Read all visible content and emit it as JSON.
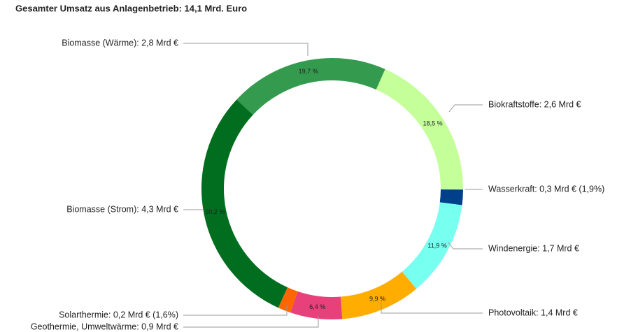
{
  "chart_data": {
    "type": "pie",
    "subtitle": "Gesamter Umsatz aus Anlagenbetrieb: 14,1 Mrd. Euro",
    "categories": [
      "Biomasse (Wärme): 2,8 Mrd €",
      "Biokraftstoffe: 2,6 Mrd €",
      "Wasserkraft: 0,3 Mrd € (1,9%)",
      "Windenergie: 1,7 Mrd €",
      "Photovoltaik: 1,4 Mrd €",
      "Geothermie, Umweltwärme: 0,9 Mrd €",
      "Solarthermie: 0,2 Mrd € (1,6%)",
      "Biomasse (Strom): 4,3 Mrd €"
    ],
    "values": [
      19.7,
      18.5,
      1.9,
      11.9,
      9.9,
      6.4,
      1.6,
      30.2
    ],
    "value_labels": [
      "19,7 %",
      "18,5 %",
      null,
      "11,9 %",
      "9,9 %",
      "6,4 %",
      null,
      "30,2 %"
    ],
    "colors": [
      "#339a4e",
      "#c4ff99",
      "#003f8a",
      "#77fff0",
      "#ffad00",
      "#e8407a",
      "#ff6600",
      "#006e1e"
    ],
    "donut": true
  }
}
